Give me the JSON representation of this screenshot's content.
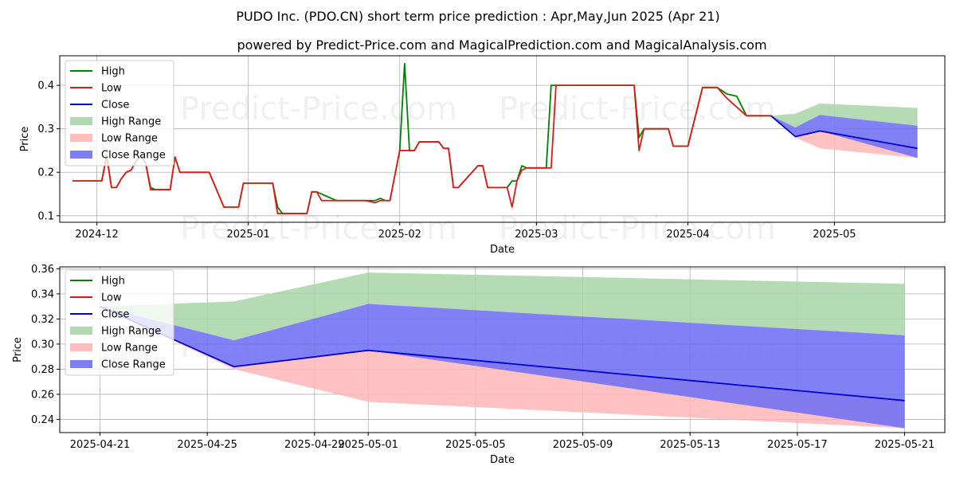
{
  "title": "PUDO Inc. (PDO.CN) short term price prediction : Apr,May,Jun 2025 (Apr 21)",
  "subtitle": "powered by Predict-Price.com and MagicalPrediction.com and MagicalAnalysis.com",
  "watermark": "Predict-Price.com",
  "colors": {
    "high": "#008000",
    "low": "#dd1a1a",
    "close": "#0000cc",
    "high_range": "#a8d5a8",
    "low_range": "#ffb6b6",
    "close_range": "#6f6ff5",
    "grid": "#b0b0b0"
  },
  "chart_data": [
    {
      "type": "line",
      "title": "",
      "xlabel": "Date",
      "ylabel": "Price",
      "x_unit": "day index (0 = 2024-11-26)",
      "xlim": [
        -2.6,
        178.6
      ],
      "ylim": [
        0.085,
        0.468
      ],
      "x_ticks": [
        {
          "x": 5,
          "label": "2024-12"
        },
        {
          "x": 36,
          "label": "2025-01"
        },
        {
          "x": 67,
          "label": "2025-02"
        },
        {
          "x": 95,
          "label": "2025-03"
        },
        {
          "x": 126,
          "label": "2025-04"
        },
        {
          "x": 156,
          "label": "2025-05"
        }
      ],
      "y_ticks": [
        {
          "y": 0.1,
          "label": "0.1"
        },
        {
          "y": 0.2,
          "label": "0.2"
        },
        {
          "y": 0.3,
          "label": "0.3"
        },
        {
          "y": 0.4,
          "label": "0.4"
        }
      ],
      "legend": [
        "High",
        "Low",
        "Close",
        "High Range",
        "Low Range",
        "Close Range"
      ],
      "legend_position": "top-left",
      "grid": true,
      "series": [
        {
          "name": "High",
          "points": [
            [
              0,
              0.18
            ],
            [
              6,
              0.18
            ],
            [
              7,
              0.24
            ],
            [
              8,
              0.165
            ],
            [
              9,
              0.165
            ],
            [
              10,
              0.185
            ],
            [
              11,
              0.2
            ],
            [
              12,
              0.205
            ],
            [
              13,
              0.225
            ],
            [
              14,
              0.24
            ],
            [
              15,
              0.22
            ],
            [
              16,
              0.165
            ],
            [
              17,
              0.16
            ],
            [
              20,
              0.16
            ],
            [
              21,
              0.235
            ],
            [
              22,
              0.2
            ],
            [
              28,
              0.2
            ],
            [
              31,
              0.12
            ],
            [
              34,
              0.12
            ],
            [
              35,
              0.175
            ],
            [
              41,
              0.175
            ],
            [
              42,
              0.12
            ],
            [
              43,
              0.105
            ],
            [
              48,
              0.105
            ],
            [
              49,
              0.155
            ],
            [
              50,
              0.155
            ],
            [
              51,
              0.15
            ],
            [
              52,
              0.145
            ],
            [
              53,
              0.14
            ],
            [
              54,
              0.135
            ],
            [
              60,
              0.135
            ],
            [
              62,
              0.135
            ],
            [
              63,
              0.14
            ],
            [
              64,
              0.135
            ],
            [
              65,
              0.135
            ],
            [
              67,
              0.25
            ],
            [
              68,
              0.45
            ],
            [
              69,
              0.25
            ],
            [
              70,
              0.25
            ],
            [
              71,
              0.27
            ],
            [
              75,
              0.27
            ],
            [
              76,
              0.255
            ],
            [
              77,
              0.255
            ],
            [
              78,
              0.165
            ],
            [
              79,
              0.165
            ],
            [
              83,
              0.215
            ],
            [
              84,
              0.215
            ],
            [
              85,
              0.165
            ],
            [
              89,
              0.165
            ],
            [
              90,
              0.18
            ],
            [
              91,
              0.18
            ],
            [
              92,
              0.215
            ],
            [
              93,
              0.21
            ],
            [
              97,
              0.21
            ],
            [
              98,
              0.4
            ],
            [
              99,
              0.4
            ],
            [
              115,
              0.4
            ],
            [
              116,
              0.28
            ],
            [
              117,
              0.3
            ],
            [
              122,
              0.3
            ],
            [
              123,
              0.26
            ],
            [
              126,
              0.26
            ],
            [
              129,
              0.395
            ],
            [
              132,
              0.395
            ],
            [
              134,
              0.38
            ],
            [
              136,
              0.375
            ],
            [
              138,
              0.33
            ],
            [
              143,
              0.33
            ]
          ]
        },
        {
          "name": "Low",
          "points": [
            [
              0,
              0.18
            ],
            [
              6,
              0.18
            ],
            [
              7,
              0.235
            ],
            [
              8,
              0.165
            ],
            [
              9,
              0.165
            ],
            [
              10,
              0.185
            ],
            [
              11,
              0.2
            ],
            [
              12,
              0.205
            ],
            [
              13,
              0.225
            ],
            [
              14,
              0.24
            ],
            [
              15,
              0.22
            ],
            [
              16,
              0.16
            ],
            [
              17,
              0.16
            ],
            [
              20,
              0.16
            ],
            [
              21,
              0.235
            ],
            [
              22,
              0.2
            ],
            [
              28,
              0.2
            ],
            [
              31,
              0.12
            ],
            [
              34,
              0.12
            ],
            [
              35,
              0.175
            ],
            [
              41,
              0.175
            ],
            [
              42,
              0.105
            ],
            [
              43,
              0.105
            ],
            [
              48,
              0.105
            ],
            [
              49,
              0.155
            ],
            [
              50,
              0.155
            ],
            [
              51,
              0.135
            ],
            [
              53,
              0.135
            ],
            [
              54,
              0.135
            ],
            [
              60,
              0.135
            ],
            [
              62,
              0.13
            ],
            [
              63,
              0.135
            ],
            [
              64,
              0.135
            ],
            [
              65,
              0.135
            ],
            [
              67,
              0.25
            ],
            [
              68,
              0.25
            ],
            [
              69,
              0.25
            ],
            [
              70,
              0.25
            ],
            [
              71,
              0.27
            ],
            [
              75,
              0.27
            ],
            [
              76,
              0.255
            ],
            [
              77,
              0.255
            ],
            [
              78,
              0.165
            ],
            [
              79,
              0.165
            ],
            [
              83,
              0.215
            ],
            [
              84,
              0.215
            ],
            [
              85,
              0.165
            ],
            [
              89,
              0.165
            ],
            [
              90,
              0.12
            ],
            [
              91,
              0.18
            ],
            [
              92,
              0.205
            ],
            [
              93,
              0.21
            ],
            [
              97,
              0.21
            ],
            [
              98,
              0.21
            ],
            [
              99,
              0.4
            ],
            [
              115,
              0.4
            ],
            [
              116,
              0.25
            ],
            [
              117,
              0.3
            ],
            [
              122,
              0.3
            ],
            [
              123,
              0.26
            ],
            [
              126,
              0.26
            ],
            [
              129,
              0.395
            ],
            [
              132,
              0.395
            ],
            [
              134,
              0.37
            ],
            [
              136,
              0.35
            ],
            [
              138,
              0.33
            ],
            [
              143,
              0.33
            ]
          ]
        },
        {
          "name": "Close",
          "points": [
            [
              143,
              0.33
            ],
            [
              148,
              0.282
            ],
            [
              153,
              0.295
            ],
            [
              173,
              0.255
            ]
          ]
        },
        {
          "name": "High Range",
          "band": [
            [
              143,
              0.33,
              0.33
            ],
            [
              148,
              0.335,
              0.303
            ],
            [
              153,
              0.358,
              0.332
            ],
            [
              173,
              0.348,
              0.307
            ]
          ]
        },
        {
          "name": "Low Range",
          "band": [
            [
              143,
              0.33,
              0.33
            ],
            [
              148,
              0.282,
              0.28
            ],
            [
              153,
              0.295,
              0.255
            ],
            [
              173,
              0.255,
              0.233
            ]
          ]
        },
        {
          "name": "Close Range",
          "band": [
            [
              143,
              0.33,
              0.33
            ],
            [
              148,
              0.303,
              0.282
            ],
            [
              153,
              0.332,
              0.295
            ],
            [
              173,
              0.307,
              0.233
            ]
          ]
        }
      ]
    },
    {
      "type": "line",
      "title": "",
      "xlabel": "Date",
      "ylabel": "Price",
      "x_unit": "day index (0 = 2025-04-21)",
      "xlim": [
        -1.5,
        31.5
      ],
      "ylim": [
        0.2295,
        0.3615
      ],
      "x_ticks": [
        {
          "x": 0,
          "label": "2025-04-21"
        },
        {
          "x": 4,
          "label": "2025-04-25"
        },
        {
          "x": 8,
          "label": "2025-04-29"
        },
        {
          "x": 10,
          "label": "2025-05-01"
        },
        {
          "x": 14,
          "label": "2025-05-05"
        },
        {
          "x": 18,
          "label": "2025-05-09"
        },
        {
          "x": 22,
          "label": "2025-05-13"
        },
        {
          "x": 26,
          "label": "2025-05-17"
        },
        {
          "x": 30,
          "label": "2025-05-21"
        }
      ],
      "y_ticks": [
        {
          "y": 0.24,
          "label": "0.24"
        },
        {
          "y": 0.26,
          "label": "0.26"
        },
        {
          "y": 0.28,
          "label": "0.28"
        },
        {
          "y": 0.3,
          "label": "0.30"
        },
        {
          "y": 0.32,
          "label": "0.32"
        },
        {
          "y": 0.34,
          "label": "0.34"
        },
        {
          "y": 0.36,
          "label": "0.36"
        }
      ],
      "legend": [
        "High",
        "Low",
        "Close",
        "High Range",
        "Low Range",
        "Close Range"
      ],
      "legend_position": "top-left",
      "grid": true,
      "series": [
        {
          "name": "High",
          "points": []
        },
        {
          "name": "Low",
          "points": []
        },
        {
          "name": "Close",
          "points": [
            [
              0,
              0.33
            ],
            [
              5,
              0.282
            ],
            [
              10,
              0.295
            ],
            [
              30,
              0.255
            ]
          ]
        },
        {
          "name": "High Range",
          "band": [
            [
              0,
              0.33,
              0.33
            ],
            [
              5,
              0.334,
              0.303
            ],
            [
              10,
              0.357,
              0.332
            ],
            [
              30,
              0.348,
              0.307
            ]
          ]
        },
        {
          "name": "Low Range",
          "band": [
            [
              0,
              0.33,
              0.33
            ],
            [
              5,
              0.282,
              0.28
            ],
            [
              10,
              0.295,
              0.254
            ],
            [
              30,
              0.255,
              0.233
            ]
          ]
        },
        {
          "name": "Close Range",
          "band": [
            [
              0,
              0.33,
              0.33
            ],
            [
              5,
              0.303,
              0.282
            ],
            [
              10,
              0.332,
              0.295
            ],
            [
              30,
              0.307,
              0.233
            ]
          ]
        }
      ]
    }
  ]
}
